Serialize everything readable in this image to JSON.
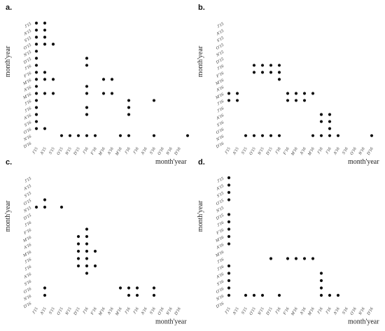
{
  "chart_data": [
    {
      "type": "scatter",
      "panel_label": "a.",
      "xlabel": "month'year",
      "ylabel": "month'year",
      "categories": [
        "J'15",
        "A'15",
        "S'15",
        "O'15",
        "N'15",
        "D'15",
        "J'16",
        "F'16",
        "M'16",
        "A'16",
        "M'16",
        "J'16",
        "J'16",
        "A'16",
        "S'16",
        "O'16",
        "N'16",
        "D'16"
      ],
      "y_categories": [
        "J'15",
        "A'15",
        "S'15",
        "O'15",
        "N'15",
        "D'15",
        "J'16",
        "F'16",
        "M'16",
        "A'16",
        "M'16",
        "J'16",
        "J'16",
        "A'16",
        "S'16",
        "O'16",
        "N'16",
        "D'16"
      ],
      "points": [
        [
          1,
          1
        ],
        [
          1,
          2
        ],
        [
          1,
          3
        ],
        [
          1,
          4
        ],
        [
          1,
          5
        ],
        [
          1,
          6
        ],
        [
          1,
          7
        ],
        [
          1,
          8
        ],
        [
          1,
          9
        ],
        [
          1,
          10
        ],
        [
          1,
          11
        ],
        [
          1,
          12
        ],
        [
          1,
          13
        ],
        [
          1,
          14
        ],
        [
          1,
          15
        ],
        [
          1,
          16
        ],
        [
          2,
          1
        ],
        [
          2,
          2
        ],
        [
          2,
          3
        ],
        [
          2,
          4
        ],
        [
          2,
          8
        ],
        [
          2,
          9
        ],
        [
          2,
          11
        ],
        [
          2,
          16
        ],
        [
          3,
          4
        ],
        [
          3,
          9
        ],
        [
          3,
          11
        ],
        [
          4,
          17
        ],
        [
          5,
          17
        ],
        [
          6,
          17
        ],
        [
          7,
          6
        ],
        [
          7,
          7
        ],
        [
          7,
          10
        ],
        [
          7,
          11
        ],
        [
          7,
          13
        ],
        [
          7,
          14
        ],
        [
          7,
          17
        ],
        [
          8,
          17
        ],
        [
          9,
          9
        ],
        [
          9,
          11
        ],
        [
          10,
          9
        ],
        [
          10,
          11
        ],
        [
          11,
          17
        ],
        [
          12,
          12
        ],
        [
          12,
          13
        ],
        [
          12,
          14
        ],
        [
          12,
          17
        ],
        [
          15,
          12
        ],
        [
          15,
          17
        ],
        [
          19,
          17
        ]
      ]
    },
    {
      "type": "scatter",
      "panel_label": "b.",
      "xlabel": "month'year",
      "ylabel": "month'year",
      "categories": [
        "J'15",
        "A'15",
        "S'15",
        "O'15",
        "N'15",
        "D'15",
        "J'16",
        "F'16",
        "M'16",
        "A'16",
        "M'16",
        "J'16",
        "J'16",
        "A'16",
        "S'16",
        "O'16",
        "N'16",
        "D'16"
      ],
      "y_categories": [
        "J'15",
        "A'15",
        "S'15",
        "O'15",
        "N'15",
        "D'15",
        "J'16",
        "F'16",
        "M'16",
        "A'16",
        "M'16",
        "J'16",
        "J'16",
        "A'16",
        "S'16",
        "O'16",
        "N'16",
        "D'16"
      ],
      "points": [
        [
          1,
          11
        ],
        [
          1,
          12
        ],
        [
          2,
          11
        ],
        [
          2,
          12
        ],
        [
          3,
          17
        ],
        [
          4,
          7
        ],
        [
          4,
          8
        ],
        [
          4,
          17
        ],
        [
          5,
          7
        ],
        [
          5,
          8
        ],
        [
          5,
          17
        ],
        [
          6,
          7
        ],
        [
          6,
          8
        ],
        [
          6,
          17
        ],
        [
          7,
          7
        ],
        [
          7,
          8
        ],
        [
          7,
          9
        ],
        [
          7,
          17
        ],
        [
          8,
          11
        ],
        [
          8,
          12
        ],
        [
          9,
          11
        ],
        [
          9,
          12
        ],
        [
          10,
          11
        ],
        [
          10,
          12
        ],
        [
          11,
          11
        ],
        [
          11,
          17
        ],
        [
          12,
          14
        ],
        [
          12,
          15
        ],
        [
          12,
          17
        ],
        [
          13,
          14
        ],
        [
          13,
          15
        ],
        [
          13,
          16
        ],
        [
          13,
          17
        ],
        [
          14,
          17
        ],
        [
          18,
          17
        ]
      ]
    },
    {
      "type": "scatter",
      "panel_label": "c.",
      "xlabel": "month'year",
      "ylabel": "month'year",
      "categories": [
        "J'15",
        "A'15",
        "S'15",
        "O'15",
        "N'15",
        "D'15",
        "J'16",
        "F'16",
        "M'16",
        "A'16",
        "M'16",
        "J'16",
        "J'16",
        "A'16",
        "S'16",
        "O'16",
        "N'16",
        "D'16"
      ],
      "y_categories": [
        "J'15",
        "A'15",
        "S'15",
        "O'15",
        "N'15",
        "D'15",
        "J'16",
        "F'16",
        "M'16",
        "A'16",
        "M'16",
        "J'16",
        "J'16",
        "A'16",
        "S'16",
        "O'16",
        "N'16",
        "D'16"
      ],
      "points": [
        [
          1,
          5
        ],
        [
          2,
          4
        ],
        [
          2,
          5
        ],
        [
          2,
          16
        ],
        [
          2,
          17
        ],
        [
          4,
          5
        ],
        [
          6,
          9
        ],
        [
          6,
          10
        ],
        [
          6,
          11
        ],
        [
          6,
          12
        ],
        [
          6,
          13
        ],
        [
          7,
          8
        ],
        [
          7,
          9
        ],
        [
          7,
          10
        ],
        [
          7,
          11
        ],
        [
          7,
          12
        ],
        [
          7,
          13
        ],
        [
          7,
          14
        ],
        [
          8,
          11
        ],
        [
          8,
          13
        ],
        [
          11,
          16
        ],
        [
          12,
          16
        ],
        [
          12,
          17
        ],
        [
          13,
          16
        ],
        [
          13,
          17
        ],
        [
          15,
          16
        ],
        [
          15,
          17
        ]
      ]
    },
    {
      "type": "scatter",
      "panel_label": "d.",
      "xlabel": "month'year",
      "ylabel": "month'year",
      "categories": [
        "J'15",
        "A'15",
        "S'15",
        "O'15",
        "N'15",
        "D'15",
        "J'16",
        "F'16",
        "M'16",
        "A'16",
        "M'16",
        "J'16",
        "J'16",
        "A'16",
        "S'16",
        "O'16",
        "N'16",
        "D'16"
      ],
      "y_categories": [
        "J'15",
        "A'15",
        "S'15",
        "O'15",
        "N'15",
        "D'15",
        "J'16",
        "F'16",
        "M'16",
        "A'16",
        "M'16",
        "J'16",
        "J'16",
        "A'16",
        "S'16",
        "O'16",
        "N'16",
        "D'16"
      ],
      "points": [
        [
          1,
          1
        ],
        [
          1,
          2
        ],
        [
          1,
          3
        ],
        [
          1,
          4
        ],
        [
          1,
          6
        ],
        [
          1,
          7
        ],
        [
          1,
          8
        ],
        [
          1,
          9
        ],
        [
          1,
          10
        ],
        [
          1,
          13
        ],
        [
          1,
          14
        ],
        [
          1,
          15
        ],
        [
          1,
          16
        ],
        [
          1,
          17
        ],
        [
          3,
          17
        ],
        [
          4,
          17
        ],
        [
          5,
          17
        ],
        [
          6,
          12
        ],
        [
          7,
          17
        ],
        [
          8,
          12
        ],
        [
          9,
          12
        ],
        [
          10,
          12
        ],
        [
          11,
          12
        ],
        [
          12,
          14
        ],
        [
          12,
          15
        ],
        [
          12,
          16
        ],
        [
          12,
          17
        ],
        [
          13,
          17
        ],
        [
          14,
          17
        ]
      ]
    }
  ]
}
